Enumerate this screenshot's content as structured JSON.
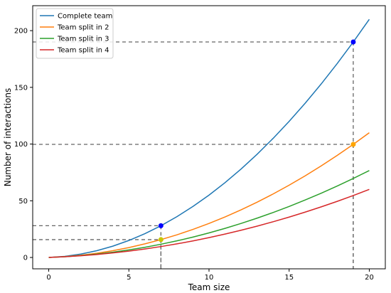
{
  "chart_data": {
    "type": "line",
    "xlabel": "Team size",
    "ylabel": "Number of interactions",
    "xlim": [
      -1,
      21
    ],
    "ylim": [
      -10,
      222
    ],
    "xticks": [
      0,
      5,
      10,
      15,
      20
    ],
    "yticks": [
      0,
      50,
      100,
      150,
      200
    ],
    "grid": false,
    "legend_position": "top-left",
    "series": [
      {
        "name": "Complete team",
        "color": "#1f77b4",
        "x": [
          0,
          1,
          2,
          3,
          4,
          5,
          6,
          7,
          8,
          9,
          10,
          11,
          12,
          13,
          14,
          15,
          16,
          17,
          18,
          19,
          20
        ],
        "values": [
          0,
          1,
          3,
          6,
          10,
          15,
          21,
          28,
          36,
          45,
          55,
          66,
          78,
          91,
          105,
          120,
          136,
          153,
          171,
          190,
          210
        ]
      },
      {
        "name": "Team split in 2",
        "color": "#ff7f0e",
        "x": [
          0,
          1,
          2,
          3,
          4,
          5,
          6,
          7,
          8,
          9,
          10,
          11,
          12,
          13,
          14,
          15,
          16,
          17,
          18,
          19,
          20
        ],
        "values": [
          0,
          0.75,
          2,
          3.75,
          6,
          8.75,
          12,
          15.75,
          20,
          24.75,
          30,
          35.75,
          42,
          48.75,
          56,
          63.75,
          72,
          80.75,
          90,
          99.75,
          110
        ]
      },
      {
        "name": "Team split in 3",
        "color": "#2ca02c",
        "x": [
          0,
          1,
          2,
          3,
          4,
          5,
          6,
          7,
          8,
          9,
          10,
          11,
          12,
          13,
          14,
          15,
          16,
          17,
          18,
          19,
          20
        ],
        "values": [
          0,
          0.67,
          1.67,
          3,
          4.67,
          6.67,
          9,
          11.67,
          14.67,
          18,
          21.67,
          25.67,
          30,
          34.67,
          39.67,
          45,
          50.67,
          56.67,
          63,
          69.67,
          76.67
        ]
      },
      {
        "name": "Team split in 4",
        "color": "#d62728",
        "x": [
          0,
          1,
          2,
          3,
          4,
          5,
          6,
          7,
          8,
          9,
          10,
          11,
          12,
          13,
          14,
          15,
          16,
          17,
          18,
          19,
          20
        ],
        "values": [
          0,
          0.63,
          1.5,
          2.63,
          4,
          5.63,
          7.5,
          9.63,
          12,
          14.63,
          17.5,
          20.63,
          24,
          27.63,
          31.5,
          35.63,
          40,
          44.63,
          49.5,
          54.63,
          60
        ]
      }
    ],
    "highlight_points": [
      {
        "x": 7,
        "y": 28,
        "color": "#0000ff"
      },
      {
        "x": 7,
        "y": 15.75,
        "color": "#c8c800"
      },
      {
        "x": 19,
        "y": 190,
        "color": "#0000ff"
      },
      {
        "x": 19,
        "y": 99.75,
        "color": "#ffa500"
      }
    ],
    "reference_lines": [
      {
        "x": 7,
        "y": 28
      },
      {
        "x": 7,
        "y": 15.75
      },
      {
        "x": 19,
        "y": 190
      },
      {
        "x": 19,
        "y": 99.75
      }
    ]
  }
}
